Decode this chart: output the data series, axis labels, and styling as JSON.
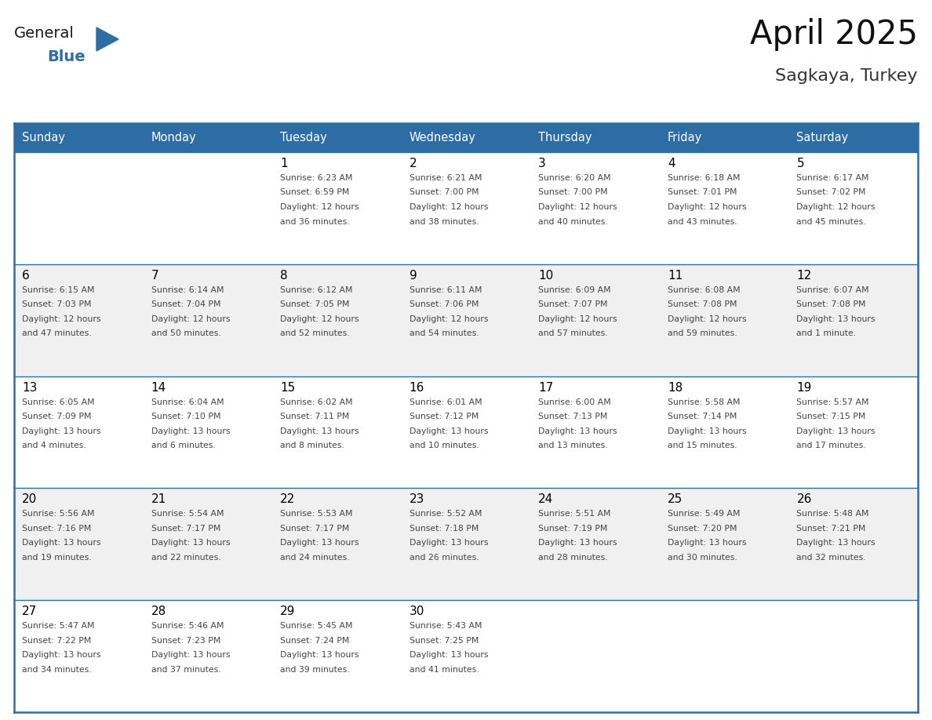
{
  "title": "April 2025",
  "subtitle": "Sagkaya, Turkey",
  "header_color": "#2E6DA4",
  "header_text_color": "#FFFFFF",
  "cell_bg_color": "#FFFFFF",
  "alt_cell_bg_color": "#F0F0F0",
  "grid_line_color": "#2E6DA4",
  "day_num_color": "#000000",
  "cell_text_color": "#444444",
  "days_of_week": [
    "Sunday",
    "Monday",
    "Tuesday",
    "Wednesday",
    "Thursday",
    "Friday",
    "Saturday"
  ],
  "calendar_data": [
    [
      {
        "day": "",
        "lines": []
      },
      {
        "day": "",
        "lines": []
      },
      {
        "day": "1",
        "lines": [
          "Sunrise: 6:23 AM",
          "Sunset: 6:59 PM",
          "Daylight: 12 hours",
          "and 36 minutes."
        ]
      },
      {
        "day": "2",
        "lines": [
          "Sunrise: 6:21 AM",
          "Sunset: 7:00 PM",
          "Daylight: 12 hours",
          "and 38 minutes."
        ]
      },
      {
        "day": "3",
        "lines": [
          "Sunrise: 6:20 AM",
          "Sunset: 7:00 PM",
          "Daylight: 12 hours",
          "and 40 minutes."
        ]
      },
      {
        "day": "4",
        "lines": [
          "Sunrise: 6:18 AM",
          "Sunset: 7:01 PM",
          "Daylight: 12 hours",
          "and 43 minutes."
        ]
      },
      {
        "day": "5",
        "lines": [
          "Sunrise: 6:17 AM",
          "Sunset: 7:02 PM",
          "Daylight: 12 hours",
          "and 45 minutes."
        ]
      }
    ],
    [
      {
        "day": "6",
        "lines": [
          "Sunrise: 6:15 AM",
          "Sunset: 7:03 PM",
          "Daylight: 12 hours",
          "and 47 minutes."
        ]
      },
      {
        "day": "7",
        "lines": [
          "Sunrise: 6:14 AM",
          "Sunset: 7:04 PM",
          "Daylight: 12 hours",
          "and 50 minutes."
        ]
      },
      {
        "day": "8",
        "lines": [
          "Sunrise: 6:12 AM",
          "Sunset: 7:05 PM",
          "Daylight: 12 hours",
          "and 52 minutes."
        ]
      },
      {
        "day": "9",
        "lines": [
          "Sunrise: 6:11 AM",
          "Sunset: 7:06 PM",
          "Daylight: 12 hours",
          "and 54 minutes."
        ]
      },
      {
        "day": "10",
        "lines": [
          "Sunrise: 6:09 AM",
          "Sunset: 7:07 PM",
          "Daylight: 12 hours",
          "and 57 minutes."
        ]
      },
      {
        "day": "11",
        "lines": [
          "Sunrise: 6:08 AM",
          "Sunset: 7:08 PM",
          "Daylight: 12 hours",
          "and 59 minutes."
        ]
      },
      {
        "day": "12",
        "lines": [
          "Sunrise: 6:07 AM",
          "Sunset: 7:08 PM",
          "Daylight: 13 hours",
          "and 1 minute."
        ]
      }
    ],
    [
      {
        "day": "13",
        "lines": [
          "Sunrise: 6:05 AM",
          "Sunset: 7:09 PM",
          "Daylight: 13 hours",
          "and 4 minutes."
        ]
      },
      {
        "day": "14",
        "lines": [
          "Sunrise: 6:04 AM",
          "Sunset: 7:10 PM",
          "Daylight: 13 hours",
          "and 6 minutes."
        ]
      },
      {
        "day": "15",
        "lines": [
          "Sunrise: 6:02 AM",
          "Sunset: 7:11 PM",
          "Daylight: 13 hours",
          "and 8 minutes."
        ]
      },
      {
        "day": "16",
        "lines": [
          "Sunrise: 6:01 AM",
          "Sunset: 7:12 PM",
          "Daylight: 13 hours",
          "and 10 minutes."
        ]
      },
      {
        "day": "17",
        "lines": [
          "Sunrise: 6:00 AM",
          "Sunset: 7:13 PM",
          "Daylight: 13 hours",
          "and 13 minutes."
        ]
      },
      {
        "day": "18",
        "lines": [
          "Sunrise: 5:58 AM",
          "Sunset: 7:14 PM",
          "Daylight: 13 hours",
          "and 15 minutes."
        ]
      },
      {
        "day": "19",
        "lines": [
          "Sunrise: 5:57 AM",
          "Sunset: 7:15 PM",
          "Daylight: 13 hours",
          "and 17 minutes."
        ]
      }
    ],
    [
      {
        "day": "20",
        "lines": [
          "Sunrise: 5:56 AM",
          "Sunset: 7:16 PM",
          "Daylight: 13 hours",
          "and 19 minutes."
        ]
      },
      {
        "day": "21",
        "lines": [
          "Sunrise: 5:54 AM",
          "Sunset: 7:17 PM",
          "Daylight: 13 hours",
          "and 22 minutes."
        ]
      },
      {
        "day": "22",
        "lines": [
          "Sunrise: 5:53 AM",
          "Sunset: 7:17 PM",
          "Daylight: 13 hours",
          "and 24 minutes."
        ]
      },
      {
        "day": "23",
        "lines": [
          "Sunrise: 5:52 AM",
          "Sunset: 7:18 PM",
          "Daylight: 13 hours",
          "and 26 minutes."
        ]
      },
      {
        "day": "24",
        "lines": [
          "Sunrise: 5:51 AM",
          "Sunset: 7:19 PM",
          "Daylight: 13 hours",
          "and 28 minutes."
        ]
      },
      {
        "day": "25",
        "lines": [
          "Sunrise: 5:49 AM",
          "Sunset: 7:20 PM",
          "Daylight: 13 hours",
          "and 30 minutes."
        ]
      },
      {
        "day": "26",
        "lines": [
          "Sunrise: 5:48 AM",
          "Sunset: 7:21 PM",
          "Daylight: 13 hours",
          "and 32 minutes."
        ]
      }
    ],
    [
      {
        "day": "27",
        "lines": [
          "Sunrise: 5:47 AM",
          "Sunset: 7:22 PM",
          "Daylight: 13 hours",
          "and 34 minutes."
        ]
      },
      {
        "day": "28",
        "lines": [
          "Sunrise: 5:46 AM",
          "Sunset: 7:23 PM",
          "Daylight: 13 hours",
          "and 37 minutes."
        ]
      },
      {
        "day": "29",
        "lines": [
          "Sunrise: 5:45 AM",
          "Sunset: 7:24 PM",
          "Daylight: 13 hours",
          "and 39 minutes."
        ]
      },
      {
        "day": "30",
        "lines": [
          "Sunrise: 5:43 AM",
          "Sunset: 7:25 PM",
          "Daylight: 13 hours",
          "and 41 minutes."
        ]
      },
      {
        "day": "",
        "lines": []
      },
      {
        "day": "",
        "lines": []
      },
      {
        "day": "",
        "lines": []
      }
    ]
  ],
  "logo_general_color": "#1a1a1a",
  "logo_blue_color": "#2E6DA4",
  "logo_triangle_color": "#2E6DA4"
}
